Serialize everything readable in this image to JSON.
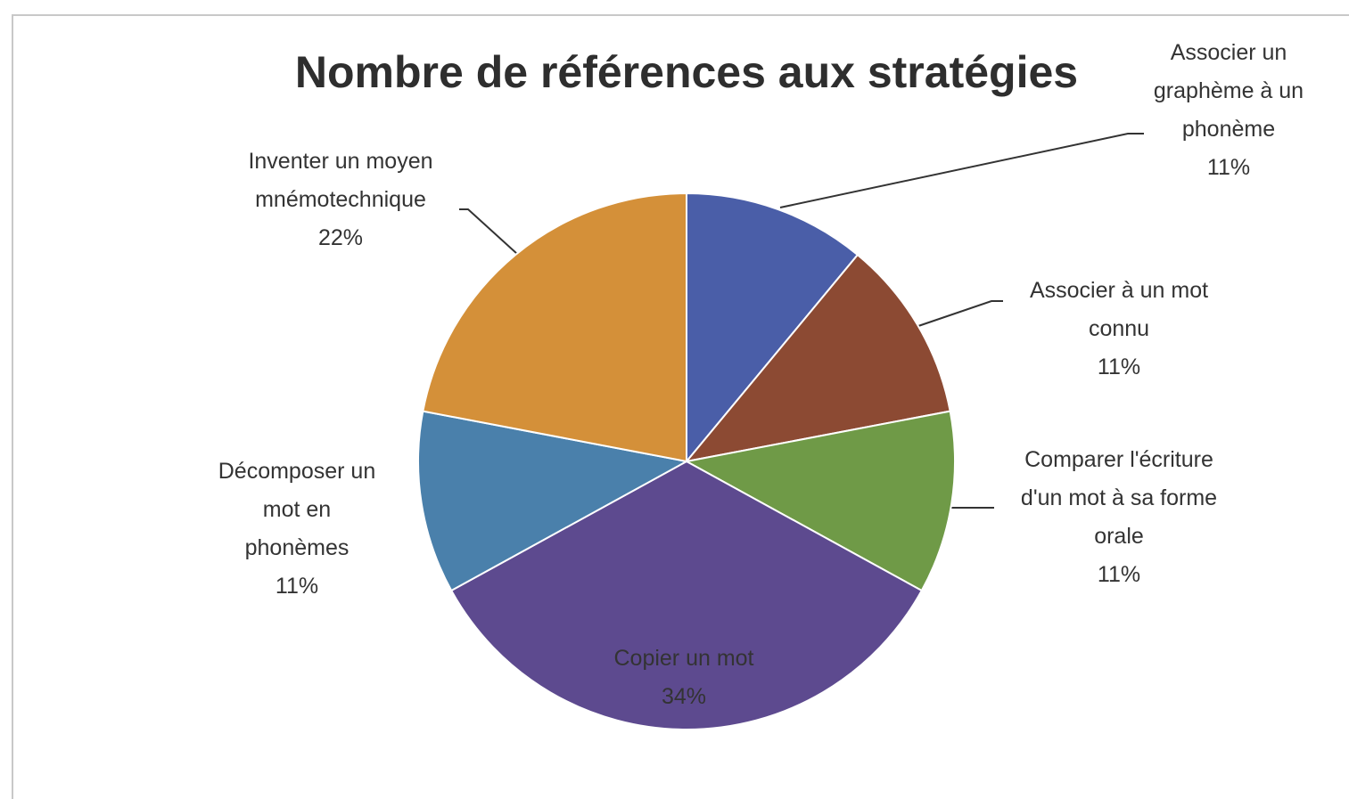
{
  "chart_data": {
    "type": "pie",
    "title": "Nombre de références aux stratégies",
    "categories": [
      "Associer un graphème à un phonème",
      "Associer à un mot connu",
      "Comparer l'écriture d'un mot à sa forme orale",
      "Copier un mot",
      "Décomposer un mot en phonèmes",
      "Inventer un moyen mnémotechnique"
    ],
    "values": [
      11,
      11,
      11,
      34,
      11,
      22
    ],
    "value_labels": [
      "11%",
      "11%",
      "11%",
      "34%",
      "11%",
      "22%"
    ],
    "colors": [
      "#4a5ea8",
      "#8c4a33",
      "#6f9a47",
      "#5d4a8f",
      "#4a80ab",
      "#d49039"
    ]
  }
}
